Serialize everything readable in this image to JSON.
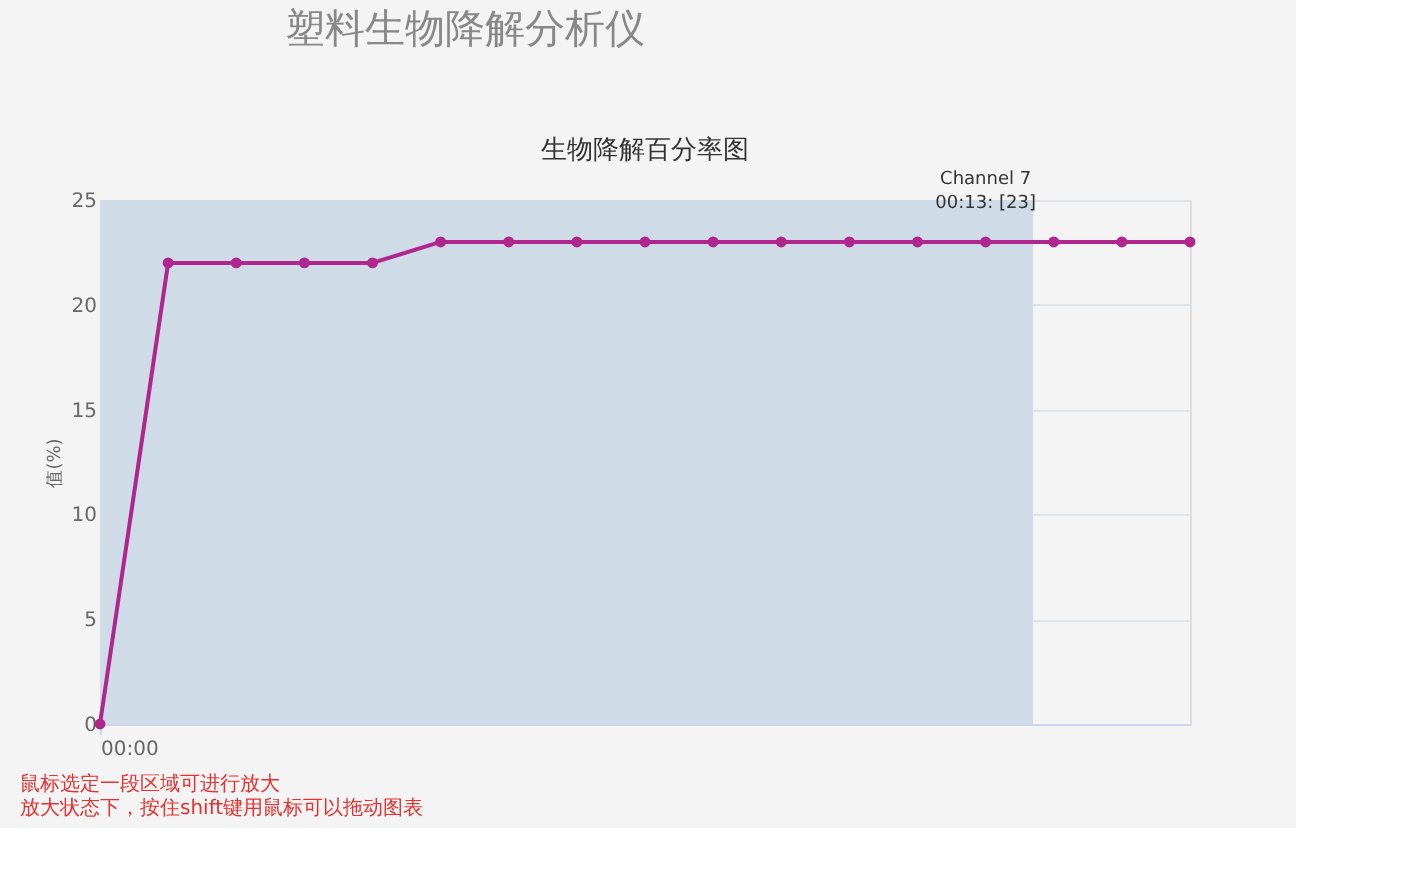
{
  "chart_data": {
    "type": "line",
    "title": "生物降解百分率图",
    "ylabel": "值(%)",
    "categories": [
      "00:00",
      null,
      null,
      null,
      null,
      null,
      null,
      null,
      null,
      null,
      null,
      null,
      null,
      null,
      null,
      null,
      null
    ],
    "series": [
      {
        "color": "#b0268f",
        "values": [
          0,
          22,
          22,
          22,
          22,
          23,
          23,
          23,
          23,
          23,
          23,
          23,
          23,
          23,
          23,
          23,
          23
        ]
      }
    ],
    "ylim": [
      0,
      25
    ],
    "yticks": [
      0,
      5,
      10,
      15,
      20,
      25
    ],
    "annotations": [
      "塑料生物降解分析仪",
      {
        "text": "Channel 7\n00:13: [23]",
        "y": 23
      },
      "鼠标选定一段区域可进行放大",
      "放大状态下，按住shift键用鼠标可以拖动图表"
    ],
    "grid": "y",
    "marker": "circle",
    "line_style": "solid"
  }
}
